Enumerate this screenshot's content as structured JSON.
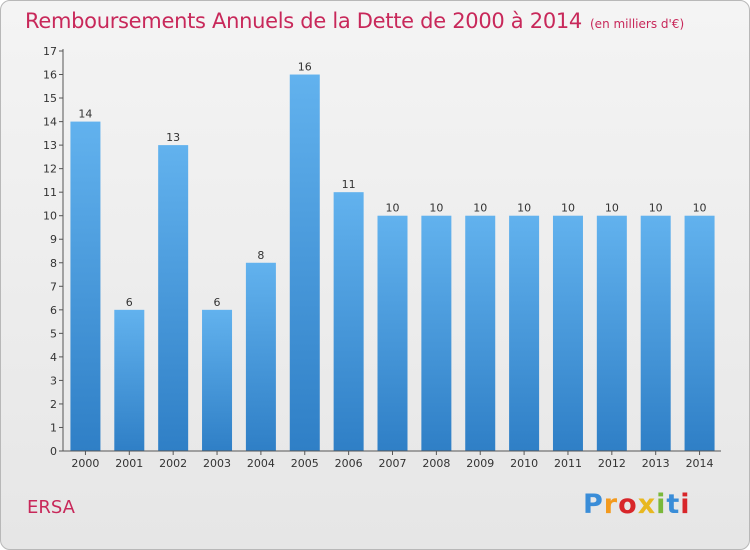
{
  "chart_data": {
    "type": "bar",
    "title": "Remboursements Annuels de la Dette de 2000 à 2014",
    "subtitle": "(en milliers d'€)",
    "categories": [
      "2000",
      "2001",
      "2002",
      "2003",
      "2004",
      "2005",
      "2006",
      "2007",
      "2008",
      "2009",
      "2010",
      "2011",
      "2012",
      "2013",
      "2014"
    ],
    "values": [
      14,
      6,
      13,
      6,
      8,
      16,
      11,
      10,
      10,
      10,
      10,
      10,
      10,
      10,
      10
    ],
    "ylim": [
      0,
      17
    ],
    "yticks": [
      0,
      1,
      2,
      3,
      4,
      5,
      6,
      7,
      8,
      9,
      10,
      11,
      12,
      13,
      14,
      15,
      16,
      17
    ],
    "grid": false,
    "data_labels": true,
    "bar_color": "#4a9fe0"
  },
  "footer": {
    "commune": "ERSA"
  },
  "logo": {
    "text": "Proxiti",
    "colors": [
      "#3a8dd8",
      "#f39a1e",
      "#d8262a",
      "#e8b820",
      "#7ab83a",
      "#3a8dd8",
      "#d8262a"
    ]
  },
  "colors": {
    "title": "#c8285a",
    "axis": "#333333"
  }
}
